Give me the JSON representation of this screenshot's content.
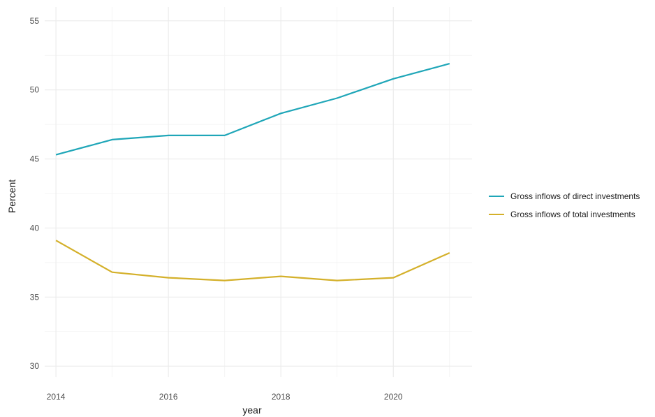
{
  "chart_data": {
    "type": "line",
    "title": "",
    "xlabel": "year",
    "ylabel": "Percent",
    "x": [
      2014,
      2015,
      2016,
      2017,
      2018,
      2019,
      2020,
      2021
    ],
    "xlim": [
      2013.8,
      2021.4
    ],
    "ylim": [
      29.2,
      56
    ],
    "x_ticks": [
      2014,
      2016,
      2018,
      2020
    ],
    "y_ticks": [
      30,
      35,
      40,
      45,
      50,
      55
    ],
    "grid": true,
    "legend_position": "right",
    "series": [
      {
        "name": "Gross inflows of direct investments",
        "color": "#1fa6b8",
        "values": [
          45.3,
          46.4,
          46.7,
          46.7,
          48.3,
          49.4,
          50.8,
          51.9
        ]
      },
      {
        "name": "Gross inflows of total investments",
        "color": "#d4b02a",
        "values": [
          39.1,
          36.8,
          36.4,
          36.2,
          36.5,
          36.2,
          36.4,
          38.2
        ]
      }
    ]
  }
}
